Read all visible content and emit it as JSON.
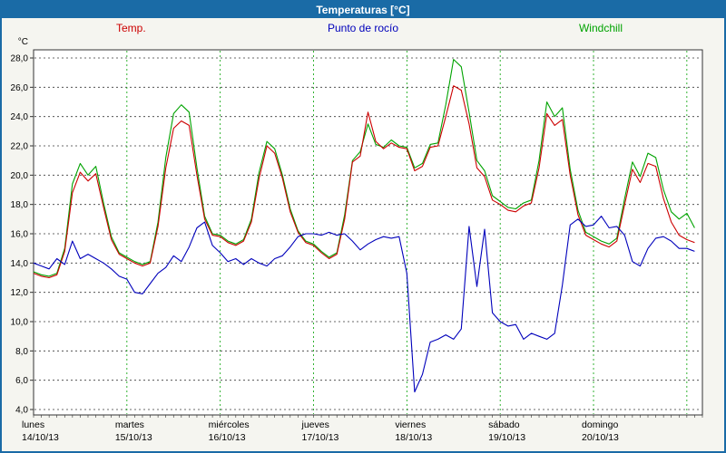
{
  "window": {
    "title": "Temperaturas [°C]"
  },
  "legend": {
    "temp": "Temp.",
    "dew": "Punto de rocío",
    "wind": "Windchill"
  },
  "colors": {
    "frame": "#1a6ba6",
    "titlebar": "#1a6ba6",
    "plot_bg": "#ffffff",
    "grid_h": "#3a3a3a",
    "grid_v": "#00a000",
    "axis": "#333333",
    "temp": "#cc0000",
    "dew": "#0000bb",
    "wind": "#00a300"
  },
  "chart_data": {
    "type": "line",
    "title": "Temperaturas [°C]",
    "ylabel": "°C",
    "ylim": [
      4,
      28
    ],
    "y_tick_step": 2,
    "y_tick_labels": [
      "28,0",
      "26,0",
      "24,0",
      "22,0",
      "20,0",
      "18,0",
      "16,0",
      "14,0",
      "12,0",
      "10,0",
      "8,0",
      "6,0",
      "4,0"
    ],
    "grid": true,
    "legend_position": "top",
    "sample_interval_hours": 2,
    "x_days": [
      {
        "name": "lunes",
        "date": "14/10/13"
      },
      {
        "name": "martes",
        "date": "15/10/13"
      },
      {
        "name": "miércoles",
        "date": "16/10/13"
      },
      {
        "name": "jueves",
        "date": "17/10/13"
      },
      {
        "name": "viernes",
        "date": "18/10/13"
      },
      {
        "name": "sábado",
        "date": "19/10/13"
      },
      {
        "name": "domingo",
        "date": "20/10/13"
      }
    ],
    "series": [
      {
        "key": "temp",
        "name": "Temp.",
        "color": "#cc0000",
        "values": [
          13.3,
          13.1,
          13.0,
          13.2,
          14.8,
          18.8,
          20.2,
          19.6,
          20.1,
          17.8,
          15.6,
          14.6,
          14.3,
          14.0,
          13.8,
          14.0,
          16.5,
          20.5,
          23.2,
          23.7,
          23.4,
          20.0,
          17.0,
          15.9,
          15.8,
          15.4,
          15.2,
          15.5,
          16.8,
          19.8,
          22.0,
          21.5,
          19.8,
          17.5,
          16.1,
          15.4,
          15.2,
          14.7,
          14.3,
          14.6,
          17.0,
          20.9,
          21.3,
          24.3,
          22.3,
          21.8,
          22.2,
          21.9,
          21.8,
          20.3,
          20.6,
          21.9,
          22.0,
          24.0,
          26.1,
          25.8,
          23.5,
          20.5,
          19.9,
          18.3,
          18.0,
          17.6,
          17.5,
          17.9,
          18.1,
          20.5,
          24.2,
          23.4,
          23.8,
          20.0,
          17.3,
          15.9,
          15.6,
          15.3,
          15.1,
          15.5,
          18.0,
          20.4,
          19.5,
          20.8,
          20.6,
          18.4,
          16.8,
          15.9,
          15.6,
          15.4
        ]
      },
      {
        "key": "dew",
        "name": "Punto de rocío",
        "color": "#0000bb",
        "values": [
          14.0,
          13.8,
          13.6,
          14.3,
          13.9,
          15.5,
          14.3,
          14.6,
          14.3,
          14.0,
          13.6,
          13.1,
          12.9,
          12.0,
          11.9,
          12.6,
          13.3,
          13.7,
          14.5,
          14.1,
          15.1,
          16.4,
          16.8,
          15.2,
          14.7,
          14.1,
          14.3,
          13.9,
          14.3,
          14.0,
          13.8,
          14.3,
          14.5,
          15.1,
          15.8,
          16.0,
          16.0,
          15.9,
          16.1,
          15.9,
          16.0,
          15.5,
          14.9,
          15.3,
          15.6,
          15.8,
          15.7,
          15.8,
          13.3,
          5.2,
          6.4,
          8.6,
          8.8,
          9.1,
          8.8,
          9.5,
          16.5,
          12.4,
          16.3,
          10.6,
          10.0,
          9.7,
          9.8,
          8.8,
          9.2,
          9.0,
          8.8,
          9.2,
          12.5,
          16.6,
          17.0,
          16.5,
          16.6,
          17.2,
          16.4,
          16.5,
          15.9,
          14.1,
          13.8,
          15.0,
          15.7,
          15.8,
          15.5,
          15.0,
          15.0,
          14.8
        ]
      },
      {
        "key": "wind",
        "name": "Windchill",
        "color": "#00a300",
        "values": [
          13.4,
          13.2,
          13.1,
          13.3,
          15.0,
          19.4,
          20.8,
          20.0,
          20.6,
          18.1,
          15.8,
          14.7,
          14.4,
          14.1,
          13.9,
          14.1,
          16.8,
          21.2,
          24.2,
          24.8,
          24.3,
          20.5,
          17.2,
          16.0,
          15.9,
          15.5,
          15.3,
          15.6,
          17.0,
          20.2,
          22.3,
          21.8,
          20.0,
          17.7,
          16.2,
          15.5,
          15.3,
          14.8,
          14.4,
          14.7,
          17.3,
          21.0,
          21.6,
          23.5,
          22.1,
          21.9,
          22.4,
          22.0,
          21.9,
          20.5,
          20.8,
          22.1,
          22.2,
          24.8,
          27.9,
          27.4,
          24.3,
          21.0,
          20.3,
          18.6,
          18.2,
          17.8,
          17.7,
          18.1,
          18.3,
          21.0,
          25.0,
          24.0,
          24.6,
          20.4,
          17.6,
          16.1,
          15.8,
          15.5,
          15.3,
          15.7,
          18.4,
          20.9,
          19.9,
          21.5,
          21.2,
          19.0,
          17.5,
          17.0,
          17.4,
          16.4
        ]
      }
    ]
  }
}
